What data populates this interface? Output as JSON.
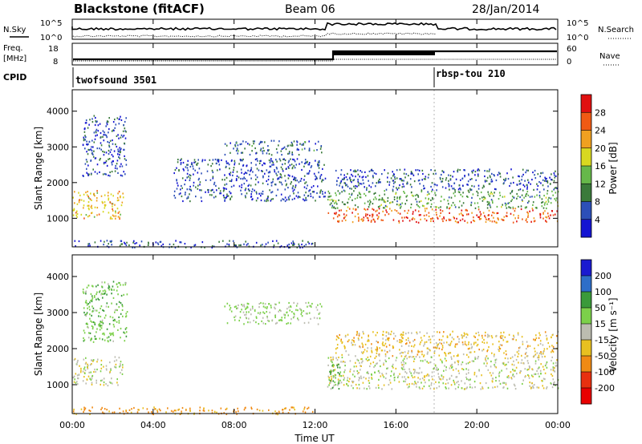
{
  "header": {
    "title": "Blackstone (fitACF)",
    "beam": "Beam 06",
    "date": "28/Jan/2014"
  },
  "summary_panels": {
    "nsky": {
      "left_label": "N.Sky",
      "right_label": "N.Search",
      "left_ticks": [
        "10^5",
        "10^0"
      ],
      "right_ticks": [
        "10^5",
        "10^0"
      ]
    },
    "freq": {
      "left_label_1": "Freq.",
      "left_label_2": "[MHz]",
      "right_label": "Nave",
      "left_ticks": [
        "18",
        "8"
      ],
      "right_ticks": [
        "60",
        "0"
      ]
    },
    "cpid": {
      "label": "CPID",
      "programs": [
        {
          "name": "twofsound 3501",
          "start_hour": 0
        },
        {
          "name": "rbsp-tou 210",
          "start_hour": 18
        }
      ]
    }
  },
  "chart_data": [
    {
      "type": "heatmap",
      "title": "",
      "xlabel": "Time UT",
      "ylabel": "Slant Range [km]",
      "xlim": [
        0,
        24
      ],
      "ylim": [
        200,
        4600
      ],
      "x_ticks": [
        "00:00",
        "04:00",
        "08:00",
        "12:00",
        "16:00",
        "20:00",
        "00:00"
      ],
      "y_ticks": [
        "1000",
        "2000",
        "3000",
        "4000"
      ],
      "colorbar": {
        "label": "Power [dB]",
        "min": 0,
        "max": 32,
        "ticks": [
          "28",
          "24",
          "20",
          "16",
          "12",
          "8",
          "4"
        ]
      },
      "regions": [
        {
          "t": [
            0,
            2.5
          ],
          "r": [
            1000,
            1800
          ],
          "dB": 20
        },
        {
          "t": [
            0.5,
            2.7
          ],
          "r": [
            2200,
            3900
          ],
          "dB": 6
        },
        {
          "t": [
            7.5,
            12.3
          ],
          "r": [
            2800,
            3200
          ],
          "dB": 8
        },
        {
          "t": [
            5,
            12.5
          ],
          "r": [
            1500,
            2700
          ],
          "dB": 6
        },
        {
          "t": [
            12.6,
            24
          ],
          "r": [
            900,
            1300
          ],
          "dB": 26
        },
        {
          "t": [
            12.6,
            24
          ],
          "r": [
            1300,
            1800
          ],
          "dB": 12
        },
        {
          "t": [
            13,
            24
          ],
          "r": [
            1800,
            2400
          ],
          "dB": 6
        },
        {
          "t": [
            0,
            12
          ],
          "r": [
            200,
            400
          ],
          "dB": 6
        }
      ]
    },
    {
      "type": "heatmap",
      "title": "",
      "xlabel": "Time UT",
      "ylabel": "Slant Range [km]",
      "xlim": [
        0,
        24
      ],
      "ylim": [
        200,
        4600
      ],
      "x_ticks": [
        "00:00",
        "04:00",
        "08:00",
        "12:00",
        "16:00",
        "20:00",
        "00:00"
      ],
      "y_ticks": [
        "1000",
        "2000",
        "3000",
        "4000"
      ],
      "colorbar": {
        "label": "Velocity [m s⁻¹]",
        "ticks": [
          "200",
          "100",
          "50",
          "15",
          "-15",
          "-50",
          "-100",
          "-200"
        ]
      },
      "regions": [
        {
          "t": [
            0,
            2.5
          ],
          "r": [
            1000,
            1800
          ],
          "v": 0
        },
        {
          "t": [
            0.5,
            2.7
          ],
          "r": [
            2200,
            3900
          ],
          "v": 40
        },
        {
          "t": [
            7.5,
            12.3
          ],
          "r": [
            2700,
            3300
          ],
          "v": 20
        },
        {
          "t": [
            12.6,
            24
          ],
          "r": [
            900,
            1800
          ],
          "v": 0
        },
        {
          "t": [
            12.6,
            13.2
          ],
          "r": [
            900,
            1600
          ],
          "v": 60
        },
        {
          "t": [
            13,
            24
          ],
          "r": [
            1800,
            2500
          ],
          "v": -30
        },
        {
          "t": [
            0,
            12
          ],
          "r": [
            200,
            400
          ],
          "v": -60
        }
      ]
    }
  ],
  "colors": {
    "ground_scatter": "#b4b4a8"
  }
}
